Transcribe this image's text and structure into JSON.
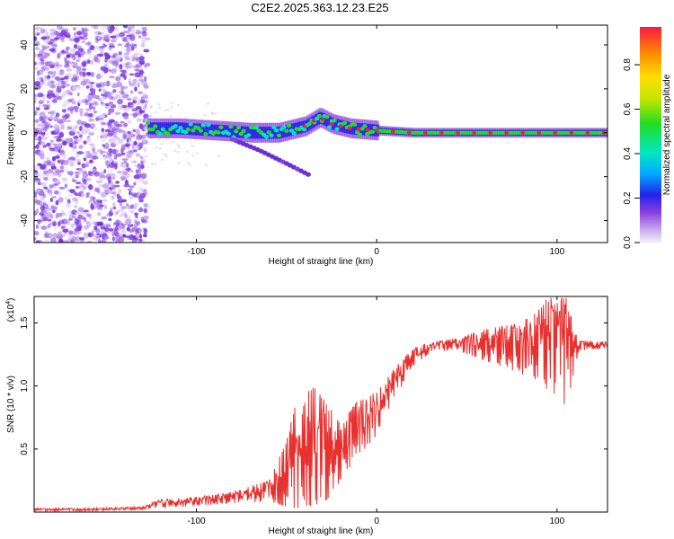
{
  "title": "C2E2.2025.363.12.23.E25",
  "chart_data": [
    {
      "type": "heatmap",
      "xlabel": "Height of straight line (km)",
      "ylabel": "Frequency (Hz)",
      "xlim": [
        -190,
        128
      ],
      "ylim": [
        -50,
        49
      ],
      "xticks": [
        -100,
        0,
        100
      ],
      "yticks": [
        -40,
        -20,
        0,
        20,
        40
      ],
      "noise_region_end_km": -127,
      "signal_frequency_hz": [
        {
          "x": -127,
          "y": 2
        },
        {
          "x": -110,
          "y": 2
        },
        {
          "x": -90,
          "y": 1
        },
        {
          "x": -70,
          "y": 0
        },
        {
          "x": -55,
          "y": 0
        },
        {
          "x": -40,
          "y": 3
        },
        {
          "x": -32,
          "y": 7
        },
        {
          "x": -25,
          "y": 4
        },
        {
          "x": -15,
          "y": 2
        },
        {
          "x": 0,
          "y": 1
        },
        {
          "x": 20,
          "y": 0
        },
        {
          "x": 60,
          "y": 0
        },
        {
          "x": 100,
          "y": 0
        },
        {
          "x": 128,
          "y": 0
        }
      ],
      "branch_frequency_hz": [
        {
          "x": -80,
          "y": -3
        },
        {
          "x": -65,
          "y": -8
        },
        {
          "x": -50,
          "y": -14
        },
        {
          "x": -38,
          "y": -19
        }
      ],
      "colorbar": {
        "label": "Normalized spectral amplitude",
        "ticks": [
          0.0,
          0.2,
          0.4,
          0.6,
          0.8
        ],
        "range": [
          0,
          0.97
        ]
      }
    },
    {
      "type": "line",
      "xlabel": "Height of straight line (km)",
      "ylabel": "SNR (10 * v/v)",
      "y_exponent_label": "(x10",
      "y_exponent_power": "4",
      "y_exponent_close": ")",
      "xlim": [
        -190,
        128
      ],
      "ylim": [
        0,
        1.71
      ],
      "xticks": [
        -100,
        0,
        100
      ],
      "yticks": [
        0.5,
        1.0,
        1.5
      ],
      "ytick_labels": [
        "0.5",
        "1.0",
        "1.5"
      ],
      "line_color": "#e8302e",
      "series": [
        {
          "name": "SNR",
          "points": [
            {
              "x": -190,
              "lo": 0.01,
              "hi": 0.03
            },
            {
              "x": -160,
              "lo": 0.01,
              "hi": 0.03
            },
            {
              "x": -130,
              "lo": 0.02,
              "hi": 0.04
            },
            {
              "x": -120,
              "lo": 0.03,
              "hi": 0.1
            },
            {
              "x": -100,
              "lo": 0.05,
              "hi": 0.12
            },
            {
              "x": -80,
              "lo": 0.07,
              "hi": 0.16
            },
            {
              "x": -60,
              "lo": 0.08,
              "hi": 0.25
            },
            {
              "x": -52,
              "lo": 0.05,
              "hi": 0.5
            },
            {
              "x": -45,
              "lo": 0.03,
              "hi": 0.85
            },
            {
              "x": -35,
              "lo": 0.05,
              "hi": 1.0
            },
            {
              "x": -27,
              "lo": 0.1,
              "hi": 0.85
            },
            {
              "x": -20,
              "lo": 0.25,
              "hi": 0.7
            },
            {
              "x": -10,
              "lo": 0.45,
              "hi": 0.9
            },
            {
              "x": 0,
              "lo": 0.6,
              "hi": 0.95
            },
            {
              "x": 10,
              "lo": 0.9,
              "hi": 1.15
            },
            {
              "x": 20,
              "lo": 1.15,
              "hi": 1.3
            },
            {
              "x": 30,
              "lo": 1.27,
              "hi": 1.35
            },
            {
              "x": 45,
              "lo": 1.28,
              "hi": 1.38
            },
            {
              "x": 60,
              "lo": 1.2,
              "hi": 1.45
            },
            {
              "x": 80,
              "lo": 1.1,
              "hi": 1.5
            },
            {
              "x": 95,
              "lo": 0.95,
              "hi": 1.7
            },
            {
              "x": 105,
              "lo": 0.82,
              "hi": 1.7
            },
            {
              "x": 112,
              "lo": 1.28,
              "hi": 1.36
            },
            {
              "x": 128,
              "lo": 1.3,
              "hi": 1.35
            }
          ]
        }
      ]
    }
  ]
}
